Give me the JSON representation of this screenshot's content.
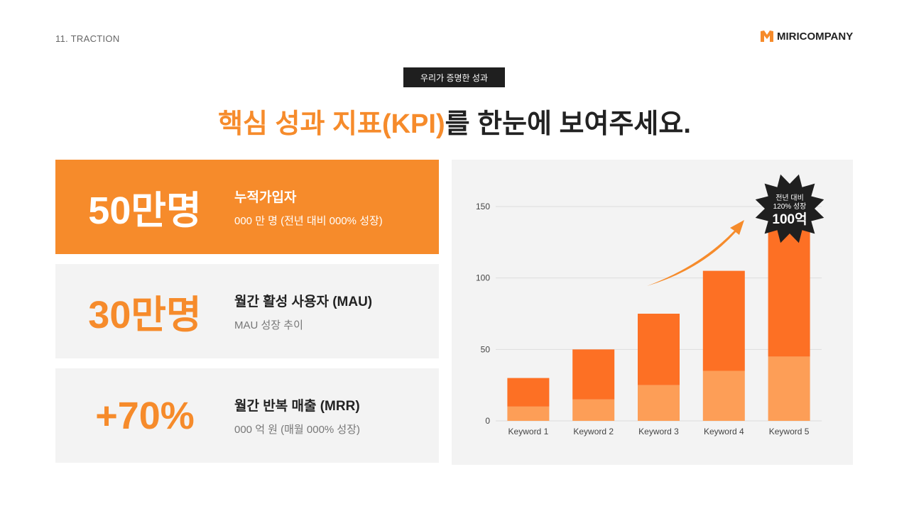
{
  "header": {
    "section": "11. TRACTION",
    "logo": "MIRICOMPANY",
    "badge": "우리가 증명한 성과",
    "title_highlight": "핵심 성과 지표(KPI)",
    "title_rest": "를 한눈에 보여주세요."
  },
  "colors": {
    "accent": "#f68b2b",
    "bar_top": "#fd7024",
    "bar_bottom": "#fd9e57",
    "dark": "#1f1f1f"
  },
  "kpis": [
    {
      "value": "50만명",
      "label": "누적가입자",
      "sub": "000 만 명 (전년 대비 000% 성장)",
      "highlighted": true
    },
    {
      "value": "30만명",
      "label": "월간 활성 사용자 (MAU)",
      "sub": "MAU 성장 추이",
      "highlighted": false
    },
    {
      "value": "+70%",
      "label": "월간 반복 매출 (MRR)",
      "sub": "000 억 원 (매월 000% 성장)",
      "highlighted": false
    }
  ],
  "chart_data": {
    "type": "bar",
    "stacked": true,
    "categories": [
      "Keyword 1",
      "Keyword 2",
      "Keyword 3",
      "Keyword 4",
      "Keyword 5"
    ],
    "series": [
      {
        "values": [
          10,
          15,
          25,
          35,
          45
        ]
      },
      {
        "values": [
          20,
          35,
          50,
          70,
          95
        ]
      }
    ],
    "ylim": [
      0,
      150
    ],
    "yticks": [
      "0",
      "50",
      "100",
      "150"
    ],
    "grid": true,
    "callout": {
      "line1": "전년 대비",
      "line2": "120% 성장",
      "value": "100억"
    }
  }
}
